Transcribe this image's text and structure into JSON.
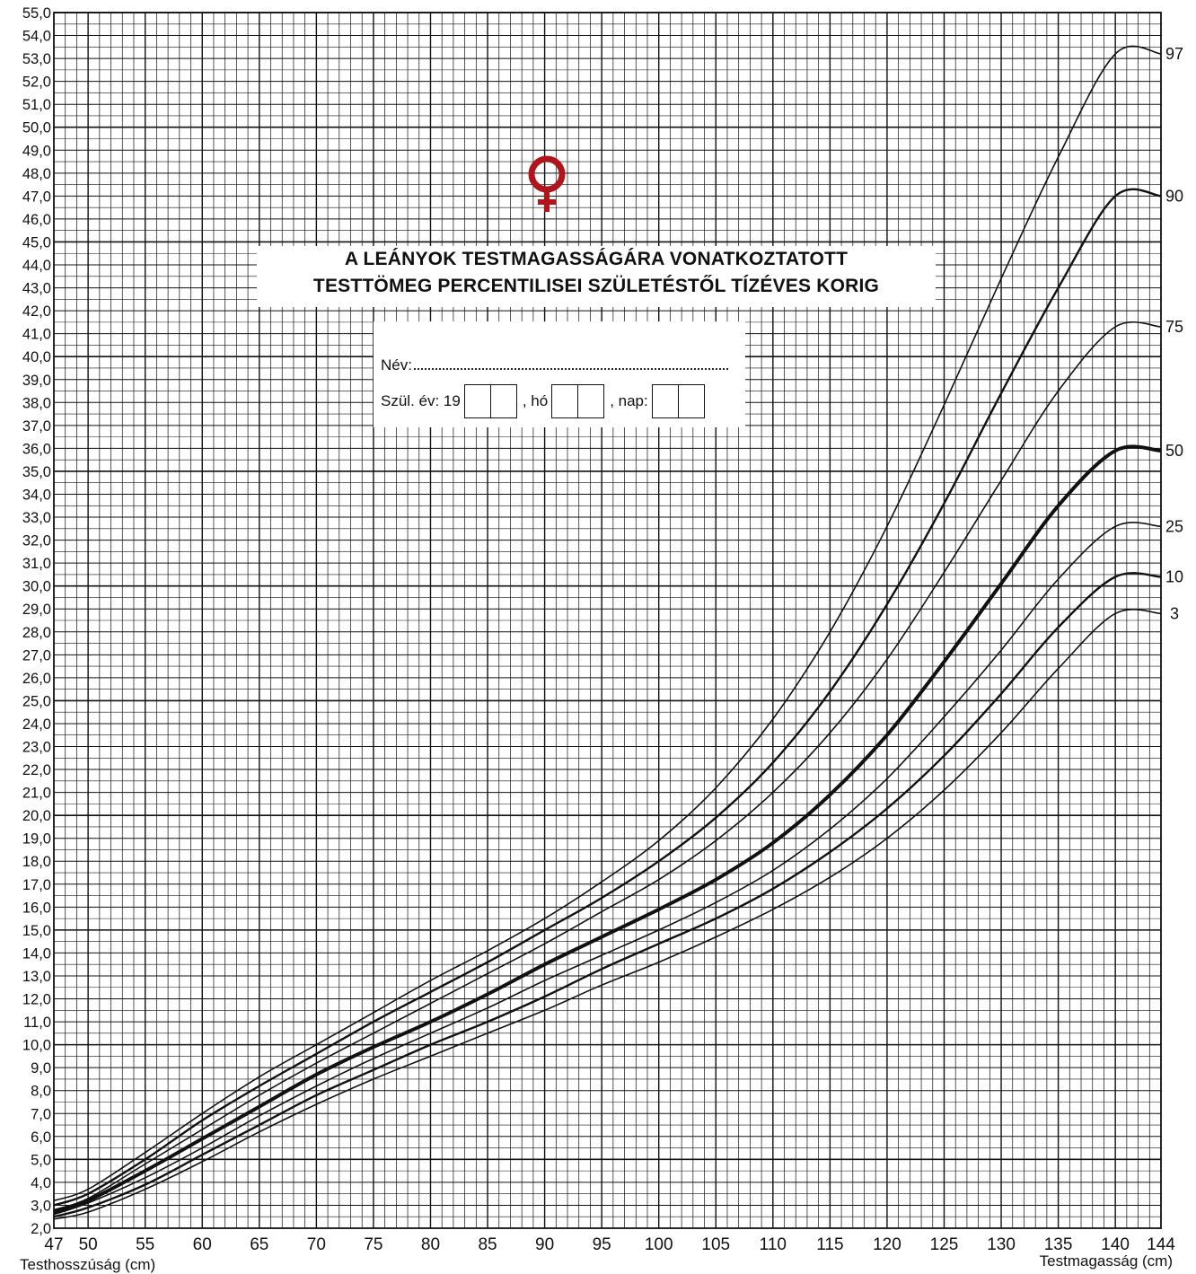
{
  "chart_data": {
    "type": "line",
    "title_lines": [
      "A LEÁNYOK TESTMAGASSÁGÁRA VONATKOZTATOTT",
      "TESTTÖMEG PERCENTILISEI SZÜLETÉSTŐL TÍZÉVES KORIG"
    ],
    "xlabel_left": "Testhosszúság (cm)",
    "xlabel_right": "Testmagasság (cm)",
    "ylabel": "",
    "xlim": [
      47,
      144
    ],
    "ylim": [
      2,
      55
    ],
    "x_ticks": [
      47,
      50,
      55,
      60,
      65,
      70,
      75,
      80,
      85,
      90,
      95,
      100,
      105,
      110,
      115,
      120,
      125,
      130,
      135,
      140,
      144
    ],
    "y_ticks": [
      "2,0",
      "3,0",
      "4,0",
      "5,0",
      "6,0",
      "7,0",
      "8,0",
      "9,0",
      "10,0",
      "11,0",
      "12,0",
      "13,0",
      "14,0",
      "15,0",
      "16,0",
      "17,0",
      "18,0",
      "19,0",
      "20,0",
      "21,0",
      "22,0",
      "23,0",
      "24,0",
      "25,0",
      "26,0",
      "27,0",
      "28,0",
      "29,0",
      "30,0",
      "31,0",
      "32,0",
      "33,0",
      "34,0",
      "35,0",
      "36,0",
      "37,0",
      "38,0",
      "39,0",
      "40,0",
      "41,0",
      "42,0",
      "43,0",
      "44,0",
      "45,0",
      "46,0",
      "47,0",
      "48,0",
      "49,0",
      "50,0",
      "51,0",
      "52,0",
      "53,0",
      "54,0",
      "55,0"
    ],
    "grid": true,
    "x": [
      47,
      50,
      55,
      60,
      65,
      70,
      75,
      80,
      85,
      90,
      95,
      100,
      105,
      110,
      115,
      120,
      125,
      130,
      135,
      140,
      144
    ],
    "series": [
      {
        "name": "97",
        "values": [
          3.2,
          3.7,
          5.3,
          7.0,
          8.6,
          10.0,
          11.4,
          12.8,
          14.1,
          15.5,
          17.1,
          18.9,
          21.2,
          24.2,
          28.0,
          32.6,
          37.9,
          43.4,
          48.7,
          53.2,
          53.2
        ]
      },
      {
        "name": "90",
        "values": [
          3.0,
          3.5,
          5.0,
          6.7,
          8.2,
          9.6,
          11.0,
          12.3,
          13.6,
          15.0,
          16.4,
          18.0,
          19.9,
          22.3,
          25.4,
          29.2,
          33.6,
          38.4,
          43.0,
          47.0,
          47.0
        ]
      },
      {
        "name": "75",
        "values": [
          2.8,
          3.3,
          4.8,
          6.3,
          7.8,
          9.2,
          10.5,
          11.8,
          13.1,
          14.4,
          15.8,
          17.2,
          18.9,
          21.0,
          23.6,
          26.8,
          30.6,
          34.6,
          38.5,
          41.3,
          41.3
        ]
      },
      {
        "name": "50",
        "values": [
          2.7,
          3.2,
          4.5,
          5.9,
          7.3,
          8.7,
          9.9,
          11.0,
          12.2,
          13.5,
          14.7,
          15.9,
          17.2,
          18.8,
          20.9,
          23.5,
          26.7,
          30.1,
          33.5,
          35.9,
          35.9
        ]
      },
      {
        "name": "25",
        "values": [
          2.6,
          3.1,
          4.2,
          5.5,
          6.9,
          8.2,
          9.4,
          10.5,
          11.6,
          12.8,
          13.9,
          15.0,
          16.2,
          17.6,
          19.4,
          21.6,
          24.3,
          27.2,
          30.3,
          32.6,
          32.6
        ]
      },
      {
        "name": "10",
        "values": [
          2.5,
          2.9,
          3.9,
          5.2,
          6.5,
          7.8,
          8.9,
          10.0,
          11.0,
          12.1,
          13.3,
          14.4,
          15.5,
          16.8,
          18.4,
          20.3,
          22.6,
          25.3,
          28.2,
          30.4,
          30.4
        ]
      },
      {
        "name": "3",
        "values": [
          2.4,
          2.7,
          3.7,
          4.9,
          6.2,
          7.4,
          8.5,
          9.5,
          10.5,
          11.5,
          12.6,
          13.6,
          14.7,
          15.9,
          17.3,
          19.0,
          21.1,
          23.6,
          26.4,
          28.8,
          28.8
        ]
      }
    ],
    "line_color": "#111111",
    "accent_color": "#b0151c"
  },
  "form": {
    "name_label": "Név:",
    "birth_label": "Szül. év: 19",
    "month_label": ", hó",
    "day_label": ", nap:"
  },
  "symbol": {
    "icon": "venus-symbol-icon",
    "color": "#b0151c"
  }
}
